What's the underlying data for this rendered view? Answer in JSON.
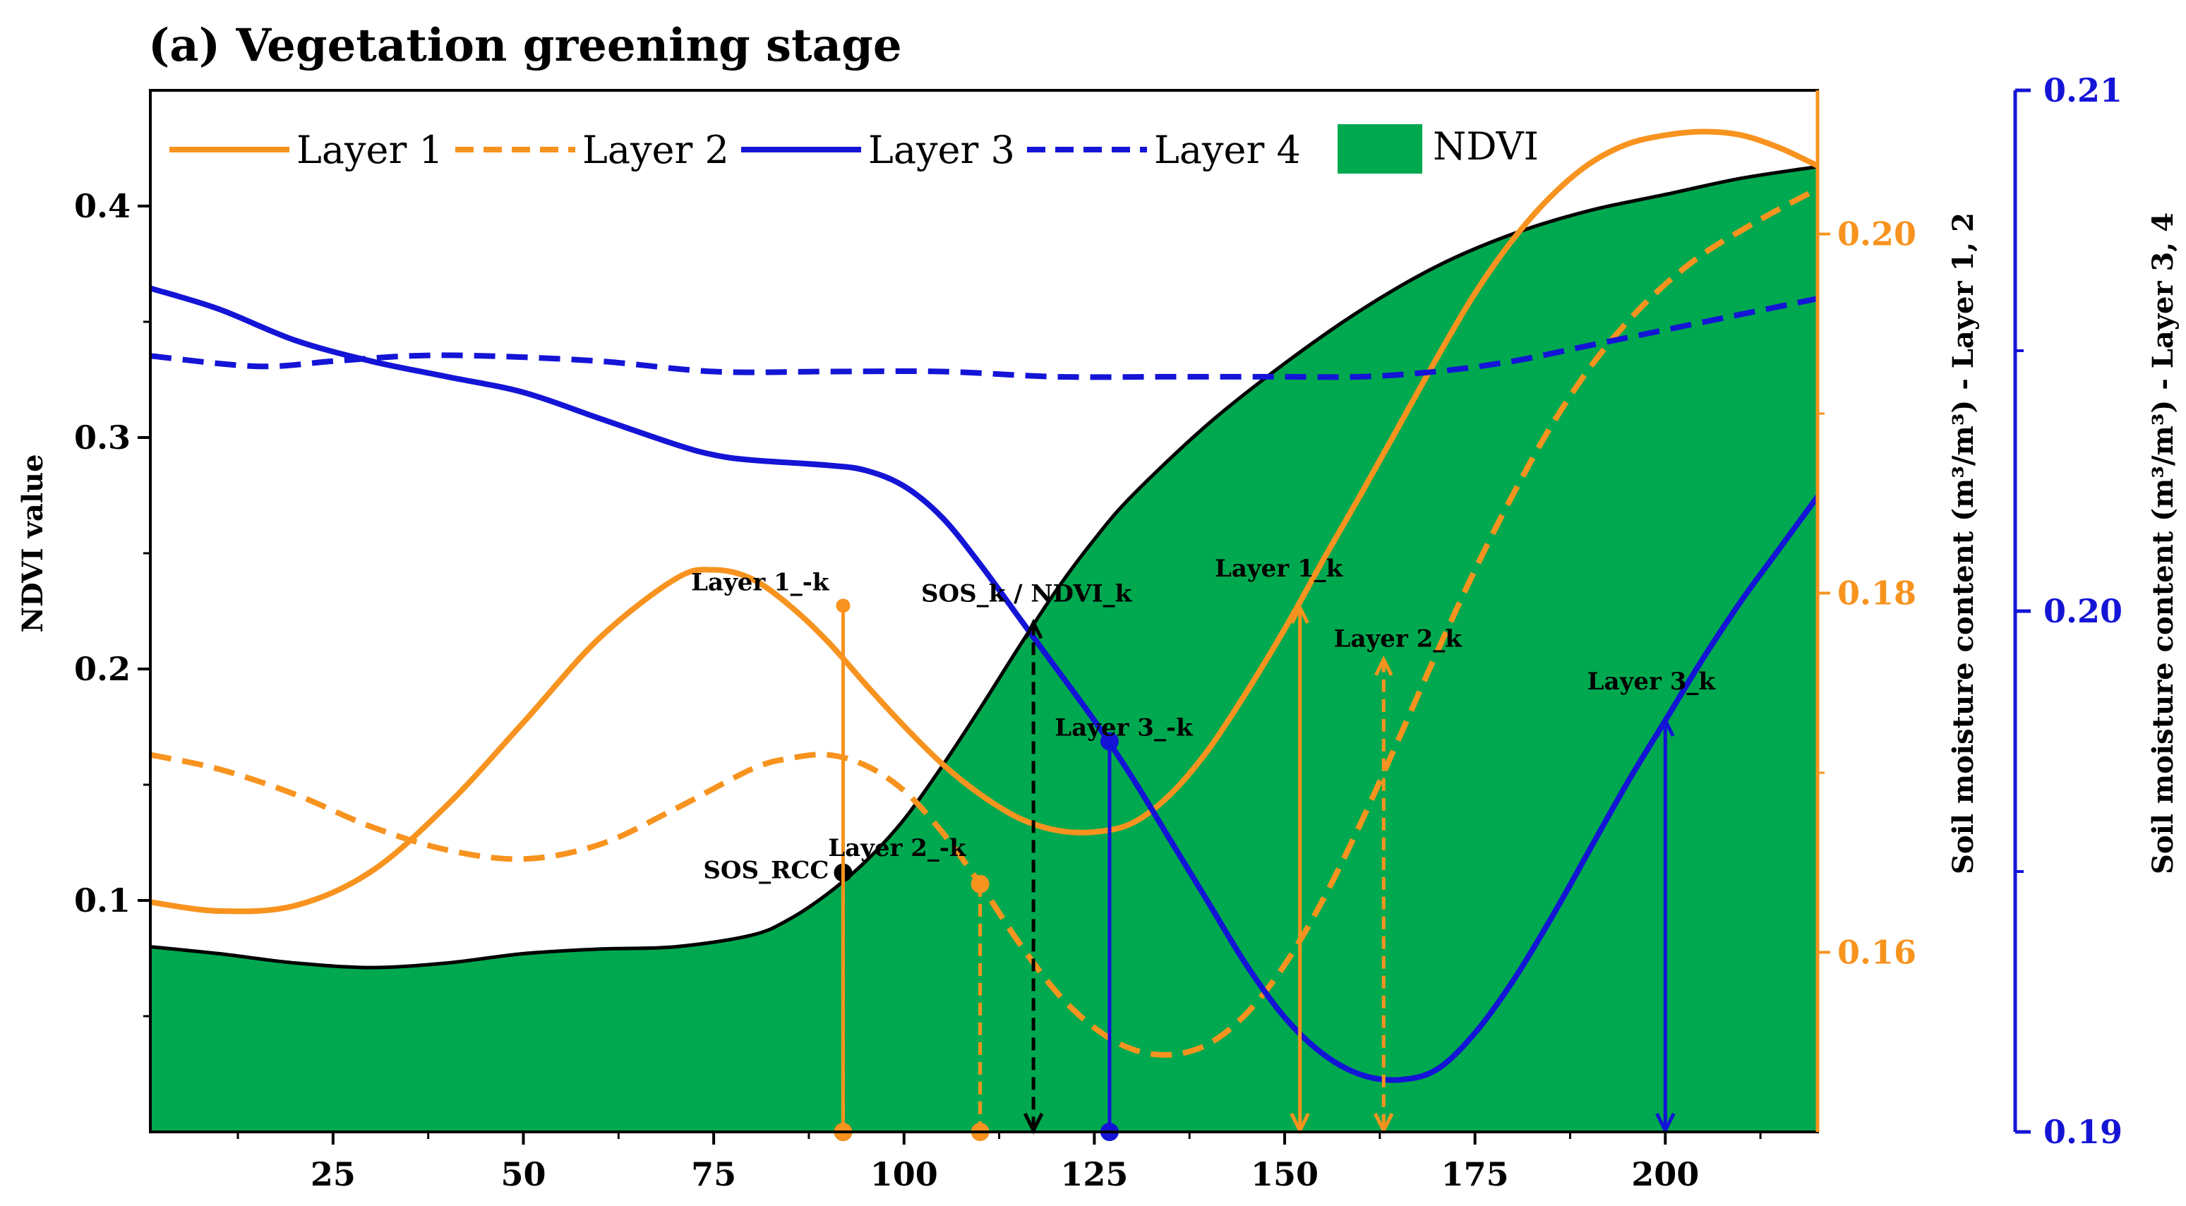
{
  "chart_data": {
    "type": "line",
    "title": "(a) Vegetation greening stage",
    "xlabel": "",
    "xlim": [
      1,
      220
    ],
    "xticks": [
      25,
      50,
      75,
      100,
      125,
      150,
      175,
      200
    ],
    "ylabel_left": "NDVI value",
    "ylim_left": [
      0,
      0.45
    ],
    "yticks_left": [
      "0.1",
      "0.2",
      "0.3",
      "0.4"
    ],
    "ylabel_right1": "Soil moisture content (m³/m³) - Layer 1, 2",
    "ylim_right1": [
      0.15,
      0.208
    ],
    "yticks_right1": [
      "0.16",
      "0.18",
      "0.20"
    ],
    "ylabel_right2": "Soil moisture content (m³/m³) - Layer 3, 4",
    "ylim_right2": [
      0.19,
      0.21
    ],
    "yticks_right2": [
      "0.19",
      "0.20",
      "0.21"
    ],
    "legend": [
      "Layer 1",
      "Layer 2",
      "Layer 3",
      "Layer 4",
      "NDVI"
    ],
    "colors": {
      "orange": "#f7931e",
      "blue": "#1414d6",
      "ndvi": "#00a94f",
      "black": "#000000"
    },
    "series": [
      {
        "name": "NDVI",
        "axis": "left",
        "style": "area",
        "x": [
          1,
          10,
          20,
          30,
          40,
          50,
          60,
          70,
          80,
          85,
          90,
          95,
          100,
          105,
          110,
          115,
          120,
          125,
          130,
          140,
          150,
          160,
          170,
          180,
          190,
          200,
          210,
          220
        ],
        "y": [
          0.08,
          0.077,
          0.073,
          0.071,
          0.073,
          0.077,
          0.079,
          0.08,
          0.085,
          0.092,
          0.103,
          0.117,
          0.135,
          0.158,
          0.183,
          0.209,
          0.234,
          0.256,
          0.275,
          0.306,
          0.332,
          0.355,
          0.374,
          0.388,
          0.398,
          0.405,
          0.412,
          0.417
        ]
      },
      {
        "name": "Layer 1",
        "axis": "right1",
        "style": "solid",
        "x": [
          1,
          10,
          20,
          30,
          40,
          50,
          60,
          70,
          75,
          80,
          85,
          90,
          95,
          100,
          105,
          110,
          115,
          120,
          125,
          130,
          135,
          140,
          145,
          150,
          155,
          160,
          165,
          170,
          175,
          180,
          185,
          190,
          195,
          200,
          205,
          210,
          215,
          220
        ],
        "y": [
          0.1628,
          0.1623,
          0.1626,
          0.1645,
          0.1682,
          0.1728,
          0.1775,
          0.1808,
          0.1813,
          0.1808,
          0.1793,
          0.1773,
          0.1749,
          0.1726,
          0.1705,
          0.1688,
          0.1675,
          0.1668,
          0.1667,
          0.1672,
          0.1688,
          0.1713,
          0.1745,
          0.178,
          0.1818,
          0.1855,
          0.1893,
          0.1931,
          0.1967,
          0.1997,
          0.2021,
          0.2039,
          0.205,
          0.2055,
          0.2057,
          0.2055,
          0.2048,
          0.2038
        ]
      },
      {
        "name": "Layer 2",
        "axis": "right1",
        "style": "dashed",
        "x": [
          1,
          10,
          20,
          30,
          40,
          50,
          60,
          70,
          80,
          85,
          90,
          95,
          100,
          105,
          110,
          115,
          120,
          125,
          130,
          135,
          140,
          145,
          150,
          155,
          160,
          165,
          170,
          175,
          180,
          185,
          190,
          195,
          200,
          205,
          210,
          215,
          220
        ],
        "y": [
          0.171,
          0.1702,
          0.1688,
          0.167,
          0.1657,
          0.1652,
          0.166,
          0.168,
          0.1702,
          0.1708,
          0.171,
          0.1704,
          0.169,
          0.1667,
          0.1638,
          0.1606,
          0.1578,
          0.1558,
          0.1546,
          0.1543,
          0.1549,
          0.1566,
          0.1593,
          0.1629,
          0.1672,
          0.1719,
          0.1767,
          0.1813,
          0.1855,
          0.1893,
          0.1925,
          0.1951,
          0.1972,
          0.1989,
          0.2002,
          0.2014,
          0.2025
        ]
      },
      {
        "name": "Layer 3",
        "axis": "right2",
        "style": "solid",
        "x": [
          1,
          10,
          20,
          30,
          40,
          50,
          60,
          70,
          75,
          80,
          90,
          95,
          100,
          105,
          110,
          115,
          120,
          125,
          130,
          135,
          140,
          145,
          150,
          155,
          160,
          165,
          170,
          175,
          180,
          185,
          190,
          195,
          200,
          205,
          210,
          215,
          220
        ],
        "y": [
          0.2062,
          0.2058,
          0.2052,
          0.2048,
          0.2045,
          0.2042,
          0.2037,
          0.2032,
          0.203,
          0.2029,
          0.2028,
          0.2027,
          0.2024,
          0.2018,
          0.2009,
          0.1999,
          0.1989,
          0.1979,
          0.1968,
          0.1956,
          0.1944,
          0.1932,
          0.1922,
          0.1915,
          0.1911,
          0.191,
          0.1912,
          0.1919,
          0.1929,
          0.1941,
          0.1954,
          0.1967,
          0.1979,
          0.1991,
          0.2002,
          0.2012,
          0.2022
        ]
      },
      {
        "name": "Layer 4",
        "axis": "right2",
        "style": "dashed",
        "x": [
          1,
          15,
          25,
          35,
          45,
          60,
          75,
          90,
          105,
          120,
          135,
          150,
          160,
          170,
          180,
          190,
          200,
          210,
          220
        ],
        "y": [
          0.2049,
          0.2047,
          0.2048,
          0.2049,
          0.2049,
          0.2048,
          0.2046,
          0.2046,
          0.2046,
          0.2045,
          0.2045,
          0.2045,
          0.2045,
          0.2046,
          0.2048,
          0.2051,
          0.2054,
          0.2057,
          0.206
        ]
      }
    ],
    "annotations": [
      {
        "label": "SOS_RCC",
        "x": 92,
        "axis": "left",
        "y": 0.112,
        "color": "#000000",
        "style": "dash-dot",
        "marker": "dot"
      },
      {
        "label": "Layer 1_-k",
        "x": 92,
        "axis": "right1",
        "y": 0.1793,
        "color": "#f7931e",
        "style": "solid",
        "marker": "small-dot"
      },
      {
        "label": "Layer 2_-k",
        "x": 110,
        "axis": "right1",
        "y": 0.1638,
        "color": "#f7931e",
        "style": "dashed",
        "marker": "dot"
      },
      {
        "label": "SOS_k / NDVI_k",
        "x": 117,
        "axis": "left",
        "y": 0.22,
        "color": "#000000",
        "style": "dashed",
        "marker": "arrow"
      },
      {
        "label": "Layer 3_-k",
        "x": 127,
        "axis": "right2",
        "y": 0.1975,
        "color": "#1414d6",
        "style": "solid",
        "marker": "dot"
      },
      {
        "label": "Layer 1_k",
        "x": 152,
        "axis": "right1",
        "y": 0.1792,
        "color": "#f7931e",
        "style": "solid",
        "marker": "arrow"
      },
      {
        "label": "Layer 2_k",
        "x": 163,
        "axis": "right1",
        "y": 0.1763,
        "color": "#f7931e",
        "style": "dashed",
        "marker": "arrow"
      },
      {
        "label": "Layer 3_k",
        "x": 200,
        "axis": "right2",
        "y": 0.1979,
        "color": "#1414d6",
        "style": "solid",
        "marker": "arrow"
      }
    ]
  }
}
